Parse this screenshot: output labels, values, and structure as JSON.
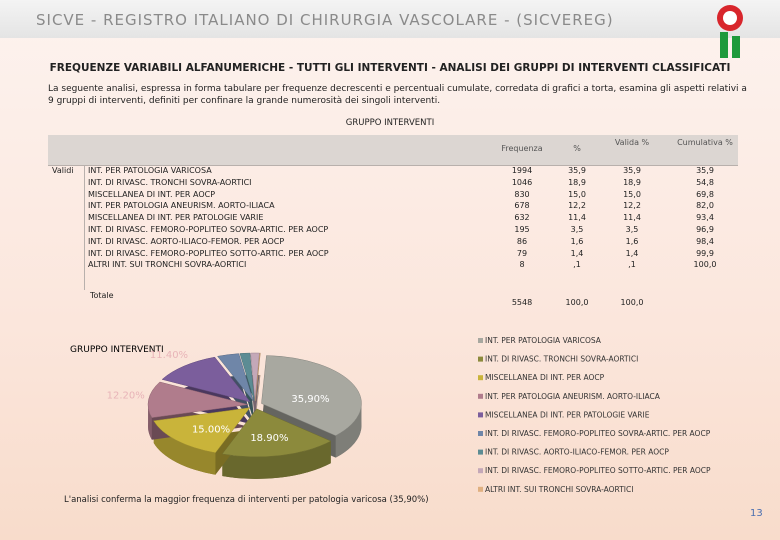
{
  "header": {
    "title": "SICVE - REGISTRO ITALIANO DI CHIRURGIA VASCOLARE - (SICVEREG)"
  },
  "heading": "FREQUENZE VARIABILI ALFANUMERICHE - TUTTI GLI INTERVENTI - ANALISI DEI GRUPPI DI INTERVENTI CLASSIFICATI",
  "intro": "La seguente analisi, espressa in forma tabulare per frequenze decrescenti e percentuali cumulate, corredata di grafici a torta, esamina gli aspetti relativi a 9 gruppi di interventi, definiti per confinare la grande numerosità dei singoli interventi.",
  "table": {
    "caption": "GRUPPO INTERVENTI",
    "headers": [
      "Frequenza",
      "%",
      "Valida %",
      "Cumulativa %"
    ],
    "group_label": "Validi",
    "rows": [
      [
        "INT. PER PATOLOGIA VARICOSA",
        "1994",
        "35,9",
        "35,9",
        "35,9"
      ],
      [
        "INT. DI RIVASC. TRONCHI SOVRA-AORTICI",
        "1046",
        "18,9",
        "18,9",
        "54,8"
      ],
      [
        "MISCELLANEA DI INT. PER AOCP",
        "830",
        "15,0",
        "15,0",
        "69,8"
      ],
      [
        "INT. PER PATOLOGIA ANEURISM. AORTO-ILIACA",
        "678",
        "12,2",
        "12,2",
        "82,0"
      ],
      [
        "MISCELLANEA DI INT. PER PATOLOGIE VARIE",
        "632",
        "11,4",
        "11,4",
        "93,4"
      ],
      [
        "INT. DI RIVASC. FEMORO-POPLITEO SOVRA-ARTIC. PER AOCP",
        "195",
        "3,5",
        "3,5",
        "96,9"
      ],
      [
        "INT. DI RIVASC. AORTO-ILIACO-FEMOR. PER AOCP",
        "86",
        "1,6",
        "1,6",
        "98,4"
      ],
      [
        "INT. DI RIVASC. FEMORO-POPLITEO SOTTO-ARTIC. PER AOCP",
        "79",
        "1,4",
        "1,4",
        "99,9"
      ],
      [
        "ALTRI INT. SUI TRONCHI SOVRA-AORTICI",
        "8",
        ",1",
        ",1",
        "100,0"
      ]
    ],
    "total": [
      "Totale",
      "5548",
      "100,0",
      "100,0"
    ]
  },
  "chart": {
    "type": "pie",
    "title": "GRUPPO INTERVENTI",
    "categories": [
      "INT. PER PATOLOGIA VARICOSA",
      "INT. DI RIVASC. TRONCHI SOVRA-AORTICI",
      "MISCELLANEA DI INT. PER AOCP",
      "INT. PER PATOLOGIA ANEURISM. AORTO-ILIACA",
      "MISCELLANEA DI INT. PER PATOLOGIE VARIE",
      "INT. DI RIVASC. FEMORO-POPLITEO SOVRA-ARTIC. PER AOCP",
      "INT. DI RIVASC. AORTO-ILIACO-FEMOR. PER AOCP",
      "INT. DI RIVASC. FEMORO-POPLITEO SOTTO-ARTIC. PER AOCP",
      "ALTRI INT. SUI TRONCHI SOVRA-AORTICI"
    ],
    "values": [
      35.9,
      18.9,
      15.0,
      12.2,
      11.4,
      3.5,
      1.6,
      1.4,
      0.1
    ],
    "value_labels": [
      "35,90%",
      "18.90%",
      "15.00%",
      "12.20%",
      "11.40%",
      null,
      null,
      null,
      null
    ],
    "colors": [
      "#a8a8a0",
      "#8c8a3c",
      "#c9b43a",
      "#b07c8c",
      "#7b5e9c",
      "#6f86a8",
      "#5c8c94",
      "#c4a8b8",
      "#e0b080"
    ]
  },
  "conclusion": "L'analisi conferma la maggior frequenza di interventi per patologia varicosa (35,90%)",
  "page_number": "13"
}
